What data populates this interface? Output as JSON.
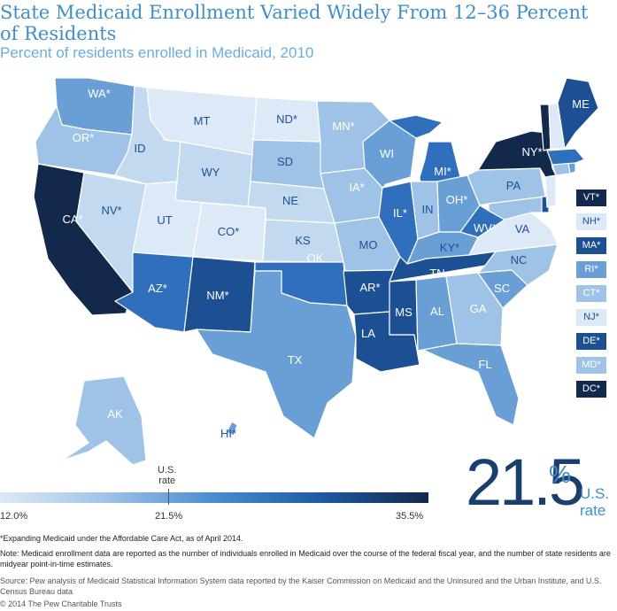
{
  "title_line1": "State Medicaid Enrollment Varied Widely From 12–36 Percent",
  "title_line2": "of Residents",
  "subtitle": "Percent of residents enrolled in Medicaid, 2010",
  "colors": {
    "title": "#3f8fc7",
    "bucket_1": "#dde9f6",
    "bucket_2": "#c2d9ef",
    "bucket_3": "#9ec3e6",
    "bucket_4": "#6a9fd6",
    "bucket_5": "#2f6fbc",
    "bucket_6": "#1d4f93",
    "bucket_7": "#13294b"
  },
  "states": {
    "WA": "WA*",
    "OR": "OR*",
    "CA": "CA*",
    "NV": "NV*",
    "ID": "ID",
    "MT": "MT",
    "WY": "WY",
    "UT": "UT",
    "CO": "CO*",
    "AZ": "AZ*",
    "NM": "NM*",
    "ND": "ND*",
    "SD": "SD",
    "NE": "NE",
    "KS": "KS",
    "OK": "OK",
    "TX": "TX",
    "MN": "MN*",
    "IA": "IA*",
    "MO": "MO",
    "AR": "AR*",
    "LA": "LA",
    "WI": "WI",
    "IL": "IL*",
    "MI": "MI*",
    "IN": "IN",
    "OH": "OH*",
    "KY": "KY*",
    "TN": "TN",
    "MS": "MS",
    "AL": "AL",
    "GA": "GA",
    "FL": "FL",
    "SC": "SC",
    "NC": "NC",
    "VA": "VA",
    "WV": "WV*",
    "PA": "PA",
    "NY": "NY*",
    "ME": "ME",
    "AK": "AK",
    "HI": "HI*"
  },
  "small_states": [
    "VT*",
    "NH*",
    "MA*",
    "RI*",
    "CT*",
    "NJ*",
    "DE*",
    "MD*",
    "DC*"
  ],
  "scale": {
    "min": "12.0%",
    "mid": "21.5%",
    "max": "35.5%",
    "marker_label_line1": "U.S.",
    "marker_label_line2": "rate"
  },
  "us_rate": {
    "value": "21.5",
    "percent_sign": "%",
    "label_line1": "U.S.",
    "label_line2": "rate"
  },
  "footnote": "*Expanding Medicaid under the Affordable Care Act, as of April 2014.",
  "note": "Note: Medicaid enrollment data are reported as the number of individuals enrolled in Medicaid over the course of the federal fiscal year, and the number of state residents are midyear point-in-time estimates.",
  "source": "Source: Pew analysis of Medicaid Statistical Information System data reported by the Kaiser Commission on Medicaid and the Uninsured and the Urban Institute, and U.S. Census Bureau data",
  "copyright": "© 2014 The Pew Charitable Trusts"
}
